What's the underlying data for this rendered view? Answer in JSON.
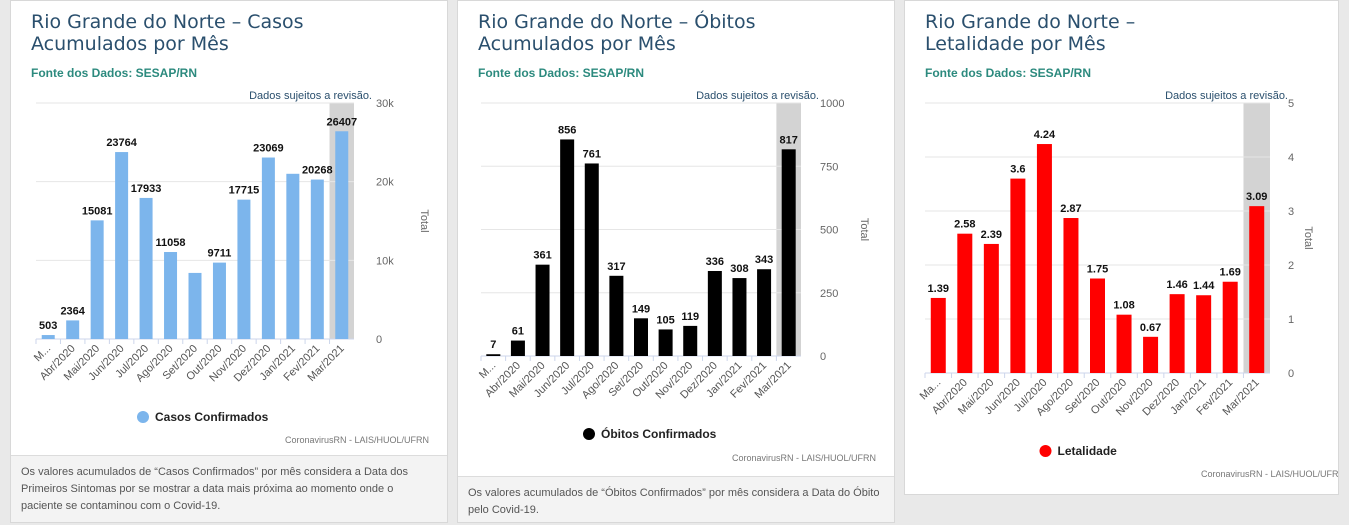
{
  "cards": [
    {
      "title": "Rio Grande do Norte – Casos Acumulados por Mês",
      "source": "Fonte dos Dados: SESAP/RN",
      "footnote": "Os valores acumulados de “Casos Confirmados” por mês considera a Data dos Primeiros Sintomas por se mostrar a data mais próxima ao momento onde o paciente se contaminou com o Covid-19."
    },
    {
      "title": "Rio Grande do Norte – Óbitos Acumulados por Mês",
      "source": "Fonte dos Dados: SESAP/RN",
      "footnote": "Os valores acumulados de “Óbitos Confirmados” por mês considera a Data do Óbito pelo Covid-19."
    },
    {
      "title": "Rio Grande do Norte – Letalidade por Mês",
      "source": "Fonte dos Dados: SESAP/RN",
      "footnote": ""
    }
  ],
  "chart_data": [
    {
      "type": "bar",
      "categories": [
        "M...",
        "Abr/2020",
        "Mai/2020",
        "Jun/2020",
        "Jul/2020",
        "Ago/2020",
        "Set/2020",
        "Out/2020",
        "Nov/2020",
        "Dez/2020",
        "Jan/2021",
        "Fev/2021",
        "Mar/2021"
      ],
      "values": [
        503,
        2364,
        15081,
        23764,
        17933,
        11058,
        8400,
        9711,
        17715,
        23069,
        21000,
        20268,
        26407
      ],
      "labels": [
        "503",
        "2364",
        "15081",
        "23764",
        "17933",
        "11058",
        "",
        "9711",
        "17715",
        "23069",
        "",
        "20268",
        "26407"
      ],
      "ylim": [
        0,
        30000
      ],
      "yticks": [
        0,
        10000,
        20000,
        30000
      ],
      "ytick_labels": [
        "0",
        "10k",
        "20k",
        "30k"
      ],
      "ylabel": "Total",
      "note": "Dados sujeitos a revisão.",
      "legend": "Casos Confirmados",
      "credit": "CoronavirusRN - LAIS/HUOL/UFRN",
      "color": "#7cb5ec",
      "highlight_last": true
    },
    {
      "type": "bar",
      "categories": [
        "M...",
        "Abr/2020",
        "Mai/2020",
        "Jun/2020",
        "Jul/2020",
        "Ago/2020",
        "Set/2020",
        "Out/2020",
        "Nov/2020",
        "Dez/2020",
        "Jan/2021",
        "Fev/2021",
        "Mar/2021"
      ],
      "values": [
        7,
        61,
        361,
        856,
        761,
        317,
        149,
        105,
        119,
        336,
        308,
        343,
        817
      ],
      "labels": [
        "7",
        "61",
        "361",
        "856",
        "761",
        "317",
        "149",
        "105",
        "119",
        "336",
        "308",
        "343",
        "817"
      ],
      "ylim": [
        0,
        1000
      ],
      "yticks": [
        0,
        250,
        500,
        750,
        1000
      ],
      "ytick_labels": [
        "0",
        "250",
        "500",
        "750",
        "1000"
      ],
      "ylabel": "Total",
      "note": "Dados sujeitos a revisão.",
      "legend": "Óbitos Confirmados",
      "credit": "CoronavirusRN - LAIS/HUOL/UFRN",
      "color": "#000000",
      "highlight_last": true
    },
    {
      "type": "bar",
      "categories": [
        "Ma...",
        "Abr/2020",
        "Mai/2020",
        "Jun/2020",
        "Jul/2020",
        "Ago/2020",
        "Set/2020",
        "Out/2020",
        "Nov/2020",
        "Dez/2020",
        "Jan/2021",
        "Fev/2021",
        "Mar/2021"
      ],
      "values": [
        1.39,
        2.58,
        2.39,
        3.6,
        4.24,
        2.87,
        1.75,
        1.08,
        0.67,
        1.46,
        1.44,
        1.69,
        3.09
      ],
      "labels": [
        "1.39",
        "2.58",
        "2.39",
        "3.6",
        "4.24",
        "2.87",
        "1.75",
        "1.08",
        "0.67",
        "1.46",
        "1.44",
        "1.69",
        "3.09"
      ],
      "ylim": [
        0,
        5
      ],
      "yticks": [
        0,
        1,
        2,
        3,
        4,
        5
      ],
      "ytick_labels": [
        "0",
        "1",
        "2",
        "3",
        "4",
        "5"
      ],
      "ylabel": "Total",
      "note": "Dados sujeitos a revisão.",
      "legend": "Letalidade",
      "credit": "CoronavirusRN - LAIS/HUOL/UFRN",
      "color": "#ff0000",
      "highlight_last": true
    }
  ]
}
